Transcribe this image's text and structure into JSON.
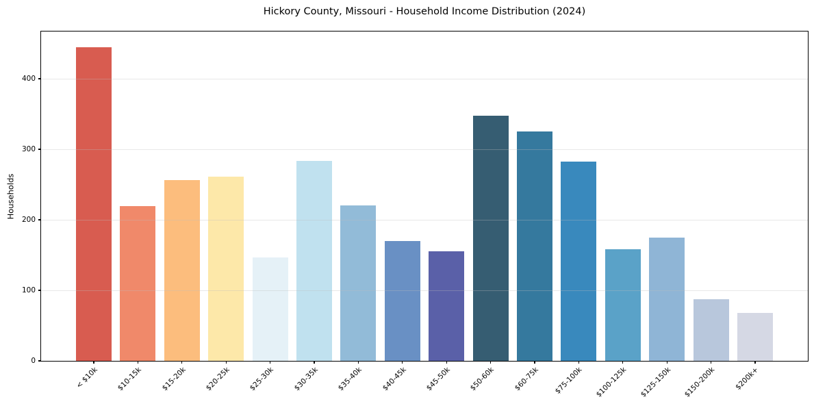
{
  "window": {
    "kind": "static chart image",
    "background": "#ffffff"
  },
  "chart_data": {
    "type": "bar",
    "title": "Hickory County, Missouri - Household Income Distribution (2024)",
    "xlabel": "",
    "ylabel": "Households",
    "categories": [
      "< $10k",
      "$10-15k",
      "$15-20k",
      "$20-25k",
      "$25-30k",
      "$30-35k",
      "$35-40k",
      "$40-45k",
      "$45-50k",
      "$50-60k",
      "$60-75k",
      "$75-100k",
      "$100-125k",
      "$125-150k",
      "$150-200k",
      "$200k+"
    ],
    "values": [
      445,
      219,
      256,
      261,
      147,
      284,
      220,
      170,
      155,
      348,
      325,
      283,
      158,
      175,
      87,
      68
    ],
    "bar_colors": [
      "#d85c50",
      "#f0896a",
      "#fcbd7d",
      "#fde8a9",
      "#e5f1f7",
      "#c0e1ef",
      "#92bbd8",
      "#6990c4",
      "#5a60a8",
      "#365d72",
      "#35799e",
      "#3989bd",
      "#5aa2c8",
      "#8fb5d6",
      "#b8c7dc",
      "#d5d8e4"
    ],
    "ylim": [
      0,
      467
    ],
    "yticks": [
      0,
      100,
      200,
      300,
      400
    ],
    "grid": true,
    "grid_color": "#bebebe",
    "frame_color": "#000000",
    "legend": "none",
    "x_tick_rotation_deg": 45
  }
}
